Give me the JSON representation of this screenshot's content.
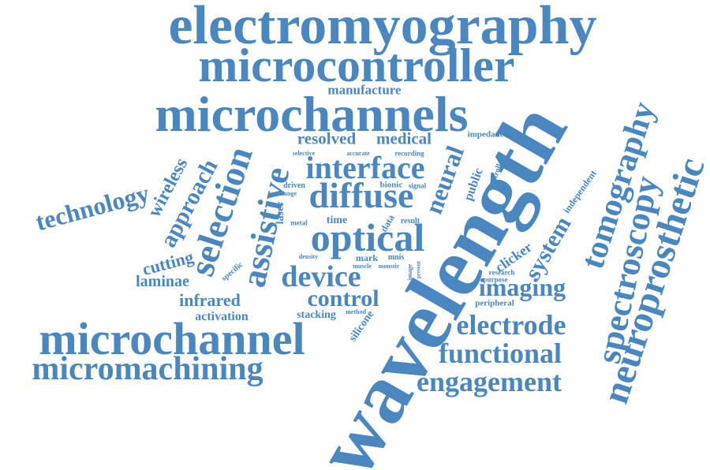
{
  "color": "#4a86c0",
  "words": {
    "electromyography": "electromyography",
    "microcontroller": "microcontroller",
    "manufacture": "manufacture",
    "microchannels": "microchannels",
    "resolved": "resolved",
    "medical": "medical",
    "impedance": "impedance",
    "selective": "selective",
    "accurate": "accurate",
    "recording": "recording",
    "interface": "interface",
    "diffuse": "diffuse",
    "driven": "driven",
    "change": "change",
    "bionic": "bionic",
    "signal": "signal",
    "optical": "optical",
    "metal": "metal",
    "time": "time",
    "data": "data",
    "result": "result",
    "density": "density",
    "mark": "mark",
    "mnis": "mnis",
    "muscle": "muscle",
    "monstir": "monstir",
    "image": "image",
    "present": "present",
    "device": "device",
    "control": "control",
    "stacking": "stacking",
    "method": "method",
    "silicone": "silicone",
    "technology": "technology",
    "wireless": "wireless",
    "approach": "approach",
    "selection": "selection",
    "assistive": "assistive",
    "laser": "laser",
    "neural": "neural",
    "public": "public",
    "controller": "controller",
    "cutting": "cutting",
    "laminae": "laminae",
    "specific": "specific",
    "infrared": "infrared",
    "activation": "activation",
    "microchannel": "microchannel",
    "micromachining": "micromachining",
    "wavelength": "wavelength",
    "tomography": "tomography",
    "independent": "independent",
    "system": "system",
    "clicker": "clicker",
    "research": "research",
    "purpose": "purpose",
    "imaging": "imaging",
    "peripheral": "peripheral",
    "electrode": "electrode",
    "functional": "functional",
    "engagement": "engagement",
    "spectroscopy": "spectroscopy",
    "neuroprosthetic": "neuroprosthetic"
  }
}
